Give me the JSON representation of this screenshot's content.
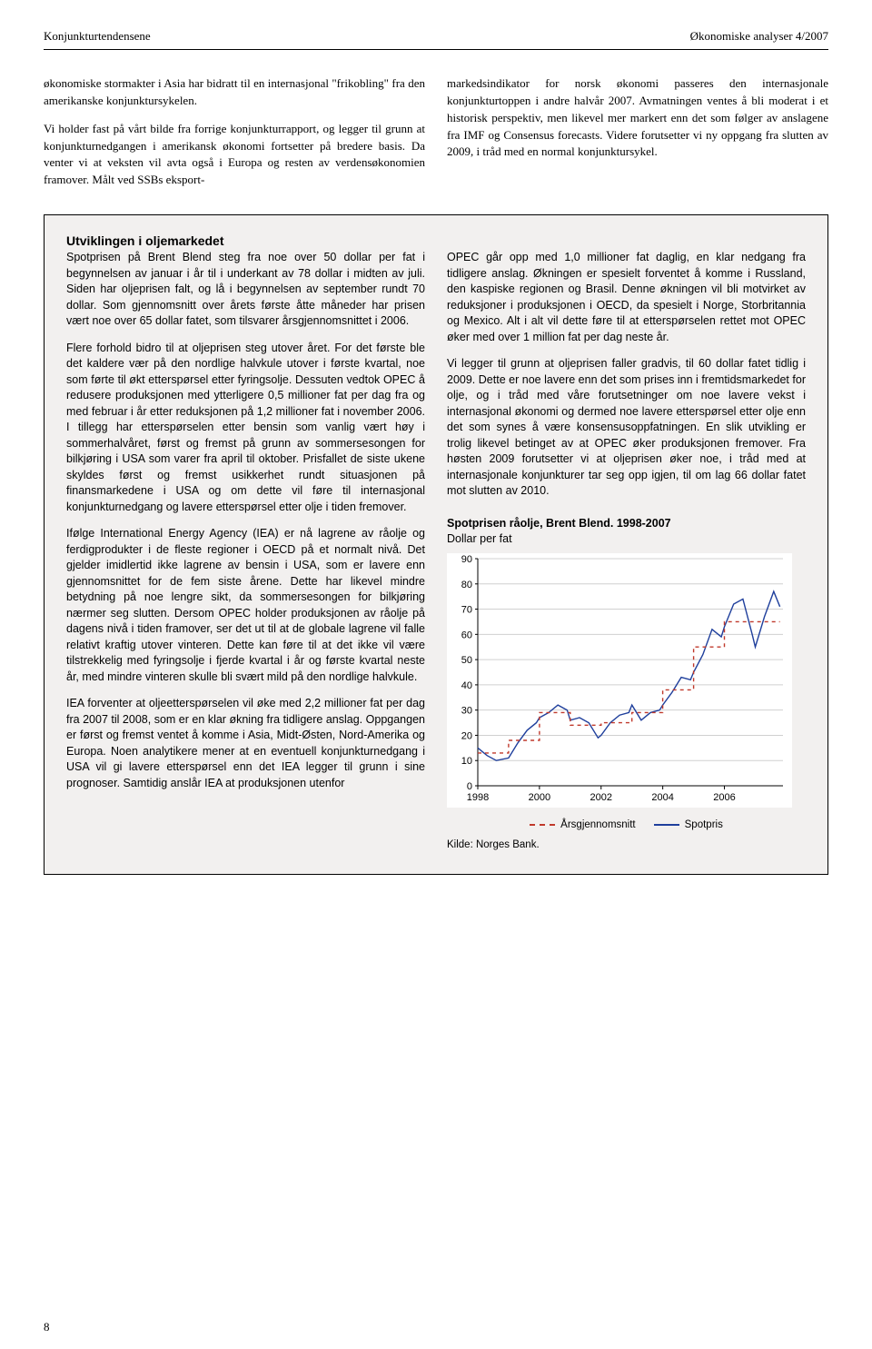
{
  "header": {
    "left": "Konjunkturtendensene",
    "right": "Økonomiske analyser 4/2007"
  },
  "main": {
    "left_col": [
      "økonomiske stormakter i Asia har bidratt til en internasjonal \"frikobling\" fra den amerikanske konjunktursykelen.",
      "Vi holder fast på vårt bilde fra forrige konjunkturrapport, og legger til grunn at konjunkturnedgangen i amerikansk økonomi fortsetter på bredere basis. Da venter vi at veksten vil avta også i Europa og resten av verdensøkonomien framover. Målt ved SSBs eksport-"
    ],
    "right_col": [
      "markedsindikator for norsk økonomi passeres den internasjonale konjunkturtoppen i andre halvår 2007. Avmatningen ventes å bli moderat i et historisk perspektiv, men likevel mer markert enn det som følger av anslagene fra IMF og Consensus forecasts. Videre forutsetter vi ny oppgang fra slutten av 2009, i tråd med en normal konjunktursykel."
    ]
  },
  "box": {
    "title": "Utviklingen i oljemarkedet",
    "left_col": [
      "Spotprisen på Brent Blend steg fra noe over 50 dollar per fat i begynnelsen av januar i år til i underkant av 78 dollar i midten av juli. Siden har oljeprisen falt, og lå i begynnelsen av september rundt 70 dollar. Som gjennomsnitt over årets første åtte måneder har prisen vært noe over 65 dollar fatet, som tilsvarer årsgjennomsnittet i 2006.",
      "Flere forhold bidro til at oljeprisen steg utover året. For det første ble det kaldere vær på den nordlige halvkule utover i første kvartal, noe som førte til økt etterspørsel etter fyringsolje. Dessuten vedtok OPEC å redusere produksjonen med ytterligere 0,5 millioner fat per dag fra og med februar i år etter reduksjonen på 1,2 millioner fat i november 2006. I tillegg har etterspørselen etter bensin som vanlig vært høy i sommerhalvåret, først og fremst på grunn av sommersesongen for bilkjøring i USA som varer fra april til oktober. Prisfallet de siste ukene skyldes først og fremst usikkerhet rundt situasjonen på finansmarkedene i USA og om dette vil føre til internasjonal konjunkturnedgang og lavere etterspørsel etter olje i tiden fremover.",
      "Ifølge International Energy Agency (IEA) er nå lagrene av råolje og ferdigprodukter i de fleste regioner i OECD på et normalt nivå. Det gjelder imidlertid ikke lagrene av bensin i USA, som er lavere enn gjennomsnittet for de fem siste årene. Dette har likevel mindre betydning på noe lengre sikt, da sommersesongen for bilkjøring nærmer seg slutten. Dersom OPEC holder produksjonen av råolje på dagens nivå i tiden framover, ser det ut til at de globale lagrene vil falle relativt kraftig utover vinteren. Dette kan føre til at det ikke vil være tilstrekkelig med fyringsolje i fjerde kvartal i år og første kvartal neste år, med mindre vinteren skulle bli svært mild på den nordlige halvkule.",
      "IEA forventer at oljeetterspørselen vil øke med 2,2 millioner fat per dag fra 2007 til 2008, som er en klar økning fra tidligere anslag. Oppgangen er først og fremst ventet å komme i Asia, Midt-Østen, Nord-Amerika og Europa. Noen analytikere mener at en eventuell konjunkturnedgang i USA vil gi lavere etterspørsel enn det IEA legger til grunn i sine prognoser. Samtidig anslår IEA at produksjonen utenfor"
    ],
    "right_col": [
      "OPEC går opp med 1,0 millioner fat daglig, en klar nedgang fra tidligere anslag. Økningen er spesielt forventet å komme i Russland, den kaspiske regionen og Brasil. Denne økningen vil bli motvirket av reduksjoner i produksjonen i OECD, da spesielt i Norge, Storbritannia og Mexico. Alt i alt vil dette føre til at etterspørselen rettet mot OPEC øker med over 1 million fat per dag neste år.",
      "Vi legger til grunn at oljeprisen faller gradvis, til 60 dollar fatet tidlig i 2009. Dette er noe lavere enn det som prises inn i fremtidsmarkedet for olje, og i tråd med våre forutsetninger om noe lavere vekst i internasjonal økonomi og dermed noe lavere etterspørsel etter olje enn det som synes å være konsensusoppfatningen. En slik utvikling er trolig likevel betinget av at OPEC øker produksjonen fremover. Fra høsten 2009 forutsetter vi at oljeprisen øker noe, i tråd med at internasjonale konjunkturer tar seg opp igjen, til om lag 66 dollar fatet mot slutten av 2010."
    ]
  },
  "chart": {
    "type": "line",
    "title": "Spotprisen råolje, Brent Blend. 1998-2007",
    "subtitle": "Dollar per fat",
    "xlim": [
      1998,
      2007.9
    ],
    "ylim": [
      0,
      90
    ],
    "ytick_step": 10,
    "xticks": [
      1998,
      2000,
      2002,
      2004,
      2006
    ],
    "background_color": "#ffffff",
    "grid_color": "#d0d0d0",
    "axis_color": "#000000",
    "fontsize_axis": 11,
    "series": [
      {
        "name": "Spotpris",
        "color": "#1f3f9c",
        "width": 1.4,
        "dash": "solid",
        "x": [
          1998.0,
          1998.3,
          1998.6,
          1999.0,
          1999.3,
          1999.6,
          1999.9,
          2000.0,
          2000.3,
          2000.6,
          2000.9,
          2001.0,
          2001.3,
          2001.6,
          2001.9,
          2002.0,
          2002.3,
          2002.6,
          2002.9,
          2003.0,
          2003.3,
          2003.6,
          2003.9,
          2004.0,
          2004.3,
          2004.6,
          2004.9,
          2005.0,
          2005.3,
          2005.6,
          2005.9,
          2006.0,
          2006.3,
          2006.6,
          2006.9,
          2007.0,
          2007.3,
          2007.6,
          2007.8
        ],
        "y": [
          15,
          12,
          10,
          11,
          17,
          22,
          25,
          27,
          29,
          32,
          30,
          26,
          27,
          25,
          19,
          20,
          25,
          28,
          29,
          32,
          26,
          29,
          30,
          32,
          37,
          43,
          42,
          45,
          52,
          62,
          59,
          63,
          72,
          74,
          60,
          55,
          67,
          77,
          71
        ]
      },
      {
        "name": "Årsgjennomsnitt",
        "color": "#c0392b",
        "width": 1.4,
        "dash": "4 4",
        "x": [
          1998,
          1999,
          1999,
          2000,
          2000,
          2001,
          2001,
          2002,
          2002,
          2003,
          2003,
          2004,
          2004,
          2005,
          2005,
          2006,
          2006,
          2007,
          2007,
          2007.8
        ],
        "y": [
          13,
          13,
          18,
          18,
          29,
          29,
          24,
          24,
          25,
          25,
          29,
          29,
          38,
          38,
          55,
          55,
          65,
          65,
          65,
          65
        ]
      }
    ],
    "legend": [
      {
        "label": "Årsgjennomsnitt",
        "color": "#c0392b",
        "dash": "4 4"
      },
      {
        "label": "Spotpris",
        "color": "#1f3f9c",
        "dash": "solid"
      }
    ],
    "source": "Kilde: Norges Bank."
  },
  "page_number": "8"
}
